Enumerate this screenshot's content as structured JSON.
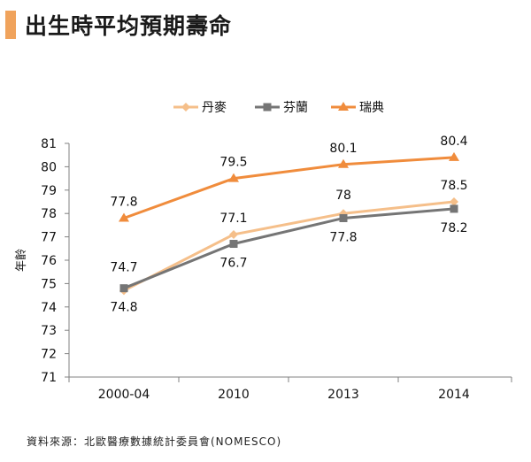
{
  "title": "出生時平均預期壽命",
  "source": "資料來源：北歐醫療數據統計委員會(NOMESCO)",
  "chart_data": {
    "type": "line",
    "title": "出生時平均預期壽命",
    "xlabel": "",
    "ylabel": "年齡",
    "categories": [
      "2000-04",
      "2010",
      "2013",
      "2014"
    ],
    "ylim": [
      71,
      81
    ],
    "yticks": [
      71,
      72,
      73,
      74,
      75,
      76,
      77,
      78,
      79,
      80,
      81
    ],
    "legend_position": "top",
    "series": [
      {
        "name": "丹麥",
        "values": [
          74.7,
          77.1,
          78,
          78.5
        ],
        "color": "#f5bf8a",
        "marker": "diamond",
        "labels": [
          "74.7",
          "77.1",
          "78",
          "78.5"
        ]
      },
      {
        "name": "芬蘭",
        "values": [
          74.8,
          76.7,
          77.8,
          78.2
        ],
        "color": "#757575",
        "marker": "square",
        "labels": [
          "74.8",
          "76.7",
          "77.8",
          "78.2"
        ]
      },
      {
        "name": "瑞典",
        "values": [
          77.8,
          79.5,
          80.1,
          80.4
        ],
        "color": "#f08c3c",
        "marker": "triangle",
        "labels": [
          "77.8",
          "79.5",
          "80.1",
          "80.4"
        ]
      }
    ]
  }
}
